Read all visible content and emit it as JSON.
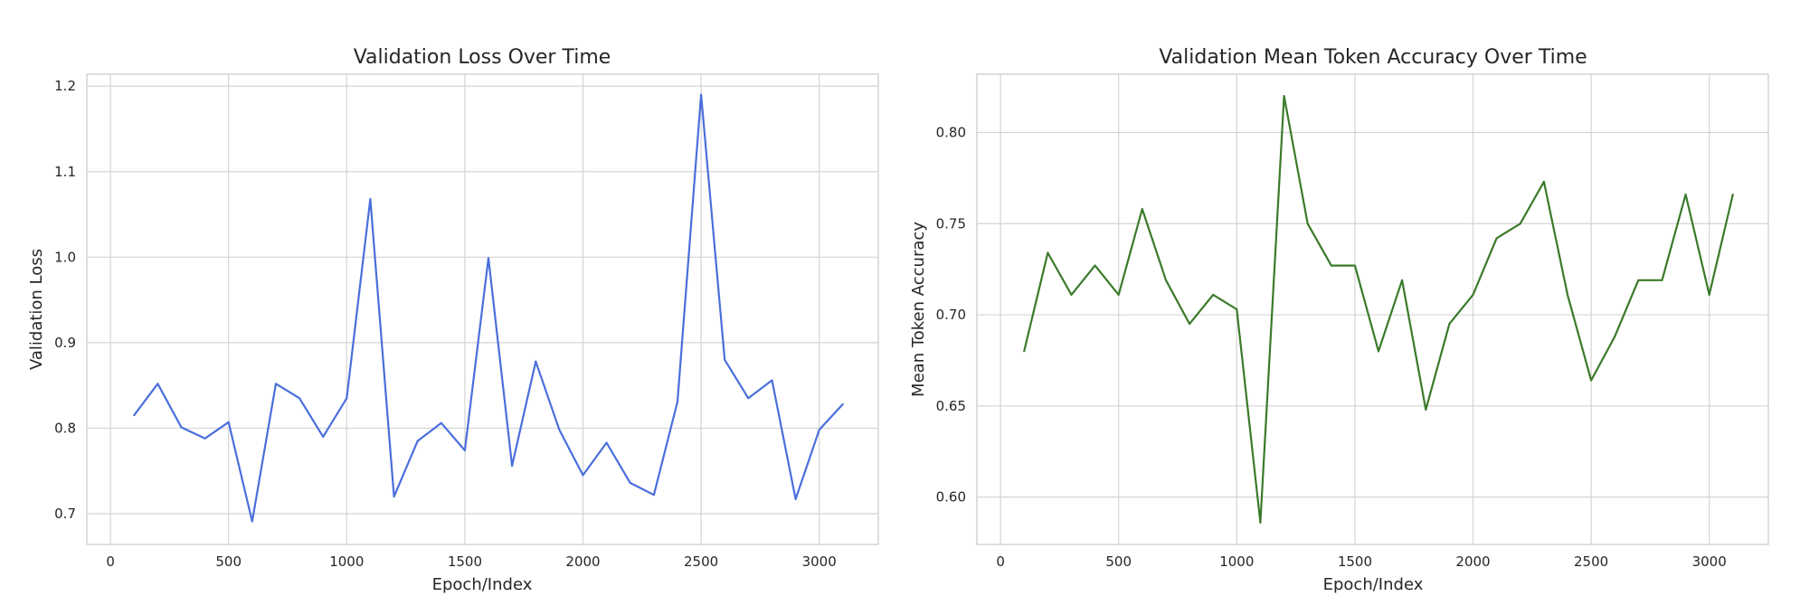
{
  "chart_data": [
    {
      "type": "line",
      "title": "Validation Loss Over Time",
      "xlabel": "Epoch/Index",
      "ylabel": "Validation Loss",
      "xlim": [
        -100,
        3250
      ],
      "ylim": [
        0.664,
        1.214
      ],
      "xticks": [
        0,
        500,
        1000,
        1500,
        2000,
        2500,
        3000
      ],
      "yticks": [
        0.7,
        0.8,
        0.9,
        1.0,
        1.1,
        1.2
      ],
      "ytick_labels": [
        "0.7",
        "0.8",
        "0.9",
        "1.0",
        "1.1",
        "1.2"
      ],
      "grid": true,
      "color": "#4a6fdc",
      "x": [
        100,
        200,
        300,
        400,
        500,
        600,
        700,
        800,
        900,
        1000,
        1100,
        1200,
        1300,
        1400,
        1500,
        1600,
        1700,
        1800,
        1900,
        2000,
        2100,
        2200,
        2300,
        2400,
        2500,
        2600,
        2700,
        2800,
        2900,
        3000,
        3100
      ],
      "y": [
        0.815,
        0.852,
        0.801,
        0.788,
        0.807,
        0.691,
        0.852,
        0.835,
        0.79,
        0.835,
        1.068,
        0.72,
        0.785,
        0.806,
        0.774,
        0.999,
        0.756,
        0.878,
        0.798,
        0.745,
        0.783,
        0.736,
        0.722,
        0.831,
        1.19,
        0.88,
        0.835,
        0.856,
        0.717,
        0.798,
        0.828
      ]
    },
    {
      "type": "line",
      "title": "Validation Mean Token Accuracy Over Time",
      "xlabel": "Epoch/Index",
      "ylabel": "Mean Token Accuracy",
      "xlim": [
        -100,
        3250
      ],
      "ylim": [
        0.574,
        0.832
      ],
      "xticks": [
        0,
        500,
        1000,
        1500,
        2000,
        2500,
        3000
      ],
      "yticks": [
        0.6,
        0.65,
        0.7,
        0.75,
        0.8
      ],
      "ytick_labels": [
        "0.60",
        "0.65",
        "0.70",
        "0.75",
        "0.80"
      ],
      "grid": true,
      "color": "#3a7a2a",
      "x": [
        100,
        200,
        300,
        400,
        500,
        600,
        700,
        800,
        900,
        1000,
        1100,
        1200,
        1300,
        1400,
        1500,
        1600,
        1700,
        1800,
        1900,
        2000,
        2100,
        2200,
        2300,
        2400,
        2500,
        2600,
        2700,
        2800,
        2900,
        3000,
        3100
      ],
      "y": [
        0.68,
        0.734,
        0.711,
        0.727,
        0.711,
        0.758,
        0.719,
        0.695,
        0.711,
        0.703,
        0.586,
        0.82,
        0.75,
        0.727,
        0.727,
        0.68,
        0.719,
        0.648,
        0.695,
        0.711,
        0.742,
        0.75,
        0.773,
        0.711,
        0.664,
        0.688,
        0.719,
        0.719,
        0.766,
        0.711,
        0.766
      ]
    }
  ]
}
